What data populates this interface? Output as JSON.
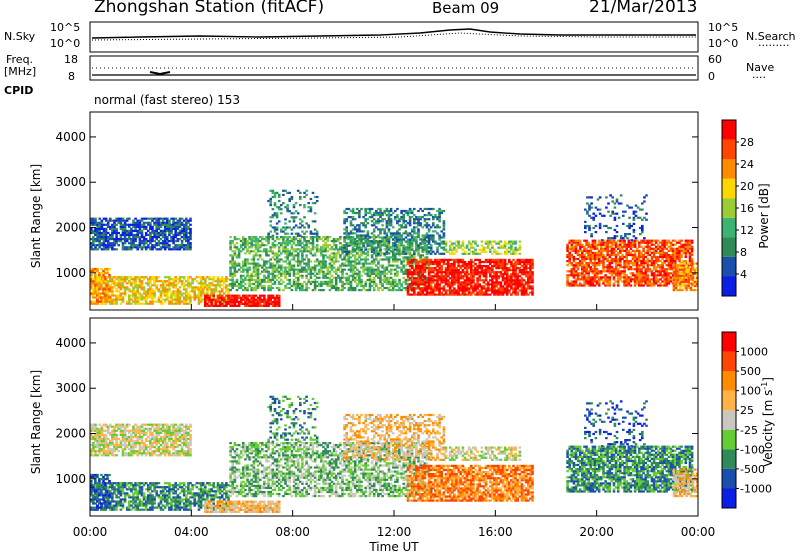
{
  "header": {
    "station": "Zhongshan Station (fitACF)",
    "beam": "Beam 09",
    "date": "21/Mar/2013"
  },
  "top_panel": {
    "left_label": "N.Sky",
    "right_label": "N.Search",
    "left_ticks": [
      "10^5",
      "10^0"
    ],
    "right_ticks": [
      "10^5",
      "10^0"
    ],
    "legend_marker": "·········"
  },
  "freq_panel": {
    "left_label_1": "Freq.",
    "left_label_2": "[MHz]",
    "right_label": "Nave",
    "left_ticks": [
      "18",
      "8"
    ],
    "right_ticks": [
      "60",
      "0"
    ],
    "legend_marker": "····"
  },
  "cpid_panel": {
    "label": "CPID",
    "text": "normal (fast stereo) 153"
  },
  "colors": {
    "power": [
      "#0a1ee6",
      "#1a4fae",
      "#2e8b57",
      "#3cb371",
      "#9acd32",
      "#ffd700",
      "#ff8c00",
      "#ff4500",
      "#ff0000"
    ],
    "velocity": [
      "#ff0000",
      "#ff4500",
      "#ff8c00",
      "#ffb347",
      "#c8c8c0",
      "#66cc33",
      "#2e8b57",
      "#1a4fae",
      "#0a1ee6"
    ]
  },
  "chart_data": [
    {
      "type": "heatmap",
      "name": "power",
      "ylabel": "Slant Range [km]",
      "xlabel": "",
      "y_ticks": [
        "1000",
        "2000",
        "3000",
        "4000"
      ],
      "x_ticks": [
        "00:00",
        "04:00",
        "08:00",
        "12:00",
        "16:00",
        "20:00",
        "00:00"
      ],
      "ylim": [
        180,
        4550
      ],
      "xlim": [
        0,
        24
      ],
      "colorbar": {
        "label": "Power [dB]",
        "ticks": [
          "4",
          "8",
          "12",
          "16",
          "20",
          "24",
          "28"
        ],
        "range": [
          0,
          30
        ]
      }
    },
    {
      "type": "heatmap",
      "name": "velocity",
      "ylabel": "Slant Range [km]",
      "xlabel": "Time UT",
      "y_ticks": [
        "1000",
        "2000",
        "3000",
        "4000"
      ],
      "x_ticks": [
        "00:00",
        "04:00",
        "08:00",
        "12:00",
        "16:00",
        "20:00",
        "00:00"
      ],
      "ylim": [
        180,
        4550
      ],
      "xlim": [
        0,
        24
      ],
      "colorbar": {
        "label": "Velocity [m s",
        "label_sup": "-1",
        "label_end": "]",
        "ticks": [
          "1000",
          "500",
          "100",
          "25",
          "-25",
          "-100",
          "-500",
          "-1000"
        ]
      }
    }
  ]
}
